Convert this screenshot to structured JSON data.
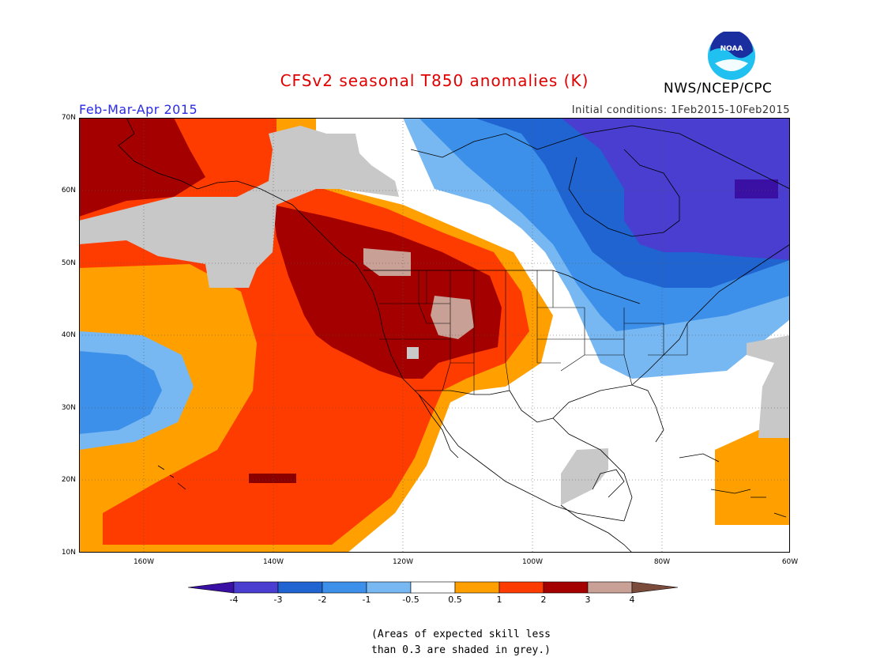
{
  "title": "CFSv2 seasonal T850 anomalies (K)",
  "period": "Feb-Mar-Apr 2015",
  "initial_conditions": "Initial conditions: 1Feb2015-10Feb2015",
  "agency": "NWS/NCEP/CPC",
  "logo_text": "NOAA",
  "lat_labels": [
    "70N",
    "60N",
    "50N",
    "40N",
    "30N",
    "20N",
    "10N"
  ],
  "lon_labels": [
    "160W",
    "140W",
    "120W",
    "100W",
    "80W",
    "60W"
  ],
  "colorbar": {
    "labels": [
      "-4",
      "-3",
      "-2",
      "-1",
      "-0.5",
      "0.5",
      "1",
      "2",
      "3",
      "4"
    ],
    "colors": [
      "#3a0fa3",
      "#4a3ed0",
      "#1f64d0",
      "#3c90ea",
      "#78b8f2",
      "#ffffff",
      "#ffa000",
      "#ff3c00",
      "#a50000",
      "#c8a096",
      "#7a4a3a"
    ]
  },
  "note": [
    "(Areas of expected skill less",
    "than 0.3 are shaded in grey.)"
  ],
  "map_colors": {
    "grey": "#c8c8c8",
    "orange": "#ffa000",
    "red_orange": "#ff3c00",
    "dark_red": "#a50000",
    "deep_red": "#8a0000",
    "tan": "#c8a096",
    "light_blue": "#78b8f2",
    "mid_blue": "#3c90ea",
    "blue": "#1f64d0",
    "blue_purple": "#4a3ed0",
    "dark_purple": "#3a0fa3"
  }
}
